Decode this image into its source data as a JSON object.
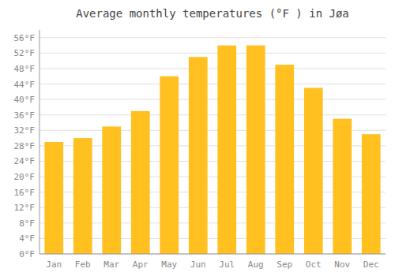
{
  "chart_data": {
    "type": "bar",
    "title": "Average monthly temperatures (°F ) in Jøa",
    "categories": [
      "Jan",
      "Feb",
      "Mar",
      "Apr",
      "May",
      "Jun",
      "Jul",
      "Aug",
      "Sep",
      "Oct",
      "Nov",
      "Dec"
    ],
    "values": [
      29,
      30,
      33,
      37,
      46,
      51,
      54,
      54,
      49,
      43,
      35,
      31
    ],
    "color": "#FFC020",
    "ylim": [
      0,
      58
    ],
    "yticks": [
      {
        "value": 0,
        "label": "0°F"
      },
      {
        "value": 4,
        "label": "4°F"
      },
      {
        "value": 8,
        "label": "8°F"
      },
      {
        "value": 12,
        "label": "12°F"
      },
      {
        "value": 16,
        "label": "16°F"
      },
      {
        "value": 20,
        "label": "20°F"
      },
      {
        "value": 24,
        "label": "24°F"
      },
      {
        "value": 28,
        "label": "28°F"
      },
      {
        "value": 32,
        "label": "32°F"
      },
      {
        "value": 36,
        "label": "36°F"
      },
      {
        "value": 40,
        "label": "40°F"
      },
      {
        "value": 44,
        "label": "44°F"
      },
      {
        "value": 48,
        "label": "48°F"
      },
      {
        "value": 52,
        "label": "52°F"
      },
      {
        "value": 56,
        "label": "56°F"
      }
    ],
    "grid": true
  }
}
